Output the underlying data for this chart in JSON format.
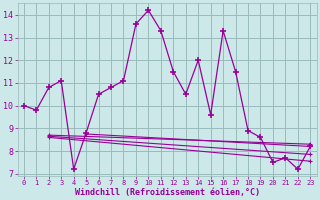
{
  "xlabel": "Windchill (Refroidissement éolien,°C)",
  "background_color": "#cce8e8",
  "grid_color": "#99bbbb",
  "line_color": "#990099",
  "x_main": [
    0,
    1,
    2,
    3,
    4,
    5,
    6,
    7,
    8,
    9,
    10,
    11,
    12,
    13,
    14,
    15,
    16,
    17,
    18,
    19,
    20,
    21,
    22,
    23
  ],
  "y_main": [
    10.0,
    9.8,
    10.8,
    11.1,
    7.2,
    8.8,
    10.5,
    10.8,
    11.1,
    13.6,
    14.2,
    13.3,
    11.5,
    10.5,
    12.0,
    9.6,
    13.3,
    11.5,
    8.9,
    8.6,
    7.5,
    7.7,
    7.2,
    8.2
  ],
  "trend_lines": [
    {
      "x": [
        2,
        23
      ],
      "y": [
        8.7,
        8.3
      ]
    },
    {
      "x": [
        2,
        23
      ],
      "y": [
        8.65,
        7.85
      ]
    },
    {
      "x": [
        2,
        23
      ],
      "y": [
        8.6,
        7.55
      ]
    },
    {
      "x": [
        5,
        23
      ],
      "y": [
        8.75,
        8.2
      ]
    }
  ],
  "ylim": [
    6.9,
    14.5
  ],
  "xlim": [
    -0.5,
    23.5
  ],
  "yticks": [
    7,
    8,
    9,
    10,
    11,
    12,
    13,
    14
  ],
  "xticks": [
    0,
    1,
    2,
    3,
    4,
    5,
    6,
    7,
    8,
    9,
    10,
    11,
    12,
    13,
    14,
    15,
    16,
    17,
    18,
    19,
    20,
    21,
    22,
    23
  ]
}
